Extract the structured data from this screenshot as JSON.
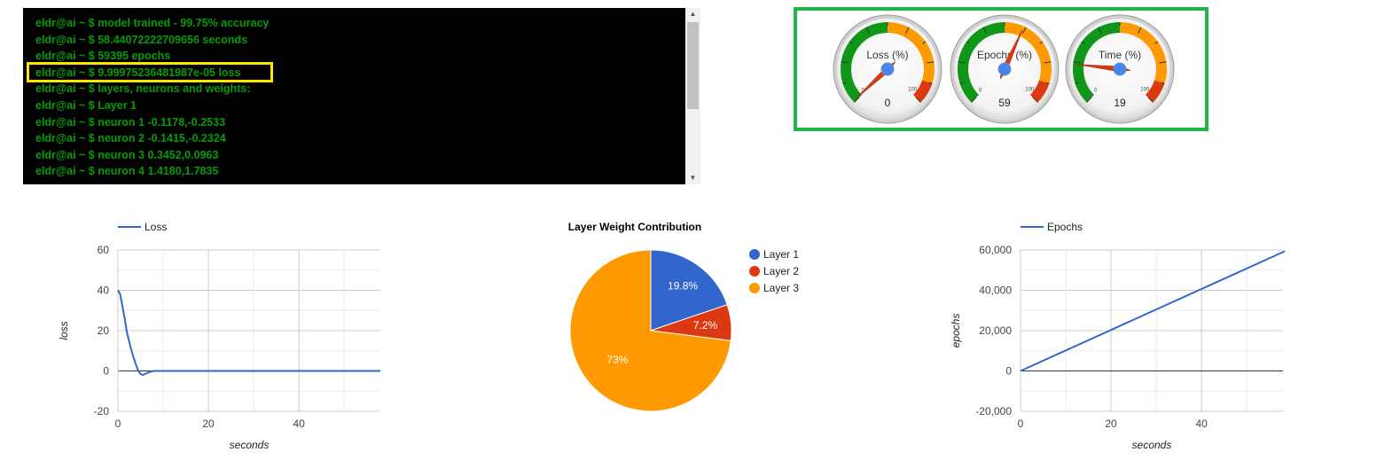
{
  "console": {
    "lines": [
      "eldr@ai ~ $ model trained - 99.75% accuracy",
      "eldr@ai ~ $ 58.44072222709656 seconds",
      "eldr@ai ~ $ 59395 epochs",
      "eldr@ai ~ $ 9.99975236481987e-05 loss",
      "eldr@ai ~ $ layers, neurons and weights:",
      "eldr@ai ~ $ Layer 1",
      "eldr@ai ~ $ neuron 1 -0.1178,-0.2533",
      "eldr@ai ~ $ neuron 2 -0.1415,-0.2324",
      "eldr@ai ~ $ neuron 3 0.3452,0.0963",
      "eldr@ai ~ $ neuron 4 1.4180,1.7835"
    ],
    "highlight_color": "#ffe600",
    "scroll_up_icon": "▲",
    "scroll_down_icon": "▼"
  },
  "gauges": [
    {
      "label": "Loss (%)",
      "value": 0,
      "display": "0",
      "min_label": "0",
      "max_label": "100"
    },
    {
      "label": "Epochs (%)",
      "value": 59,
      "display": "59",
      "min_label": "0",
      "max_label": "100"
    },
    {
      "label": "Time (%)",
      "value": 19,
      "display": "19",
      "min_label": "0",
      "max_label": "100"
    }
  ],
  "chart_data": [
    {
      "type": "line",
      "legend": "Loss",
      "xlabel": "seconds",
      "ylabel": "loss",
      "xlim": [
        0,
        58
      ],
      "ylim": [
        -20,
        60
      ],
      "xticks": [
        "0",
        "20",
        "40"
      ],
      "yticks": [
        "-20",
        "0",
        "20",
        "40",
        "60"
      ],
      "color": "#3366cc",
      "x": [
        0,
        0.5,
        1,
        1.5,
        2,
        3,
        4,
        4.5,
        5,
        5.5,
        6,
        7,
        8,
        10,
        20,
        30,
        40,
        50,
        58
      ],
      "y": [
        40,
        38,
        32,
        26,
        19,
        10,
        3,
        0,
        -1.5,
        -2,
        -1.5,
        -0.5,
        0,
        0,
        0,
        0,
        0,
        0,
        0
      ]
    },
    {
      "type": "pie",
      "title": "Layer Weight Contribution",
      "labels": [
        "Layer 1",
        "Layer 2",
        "Layer 3"
      ],
      "values": [
        19.8,
        7.2,
        73
      ],
      "slice_labels": [
        "19.8%",
        "7.2%",
        "73%"
      ],
      "colors": [
        "#3366cc",
        "#dc3912",
        "#ff9900"
      ]
    },
    {
      "type": "line",
      "legend": "Epochs",
      "xlabel": "seconds",
      "ylabel": "epochs",
      "xlim": [
        0,
        58
      ],
      "ylim": [
        -20000,
        60000
      ],
      "xticks": [
        "0",
        "20",
        "40"
      ],
      "yticks": [
        "-20,000",
        "0",
        "20,000",
        "40,000",
        "60,000"
      ],
      "color": "#3366cc",
      "x": [
        0,
        58.44
      ],
      "y": [
        0,
        59395
      ]
    }
  ]
}
